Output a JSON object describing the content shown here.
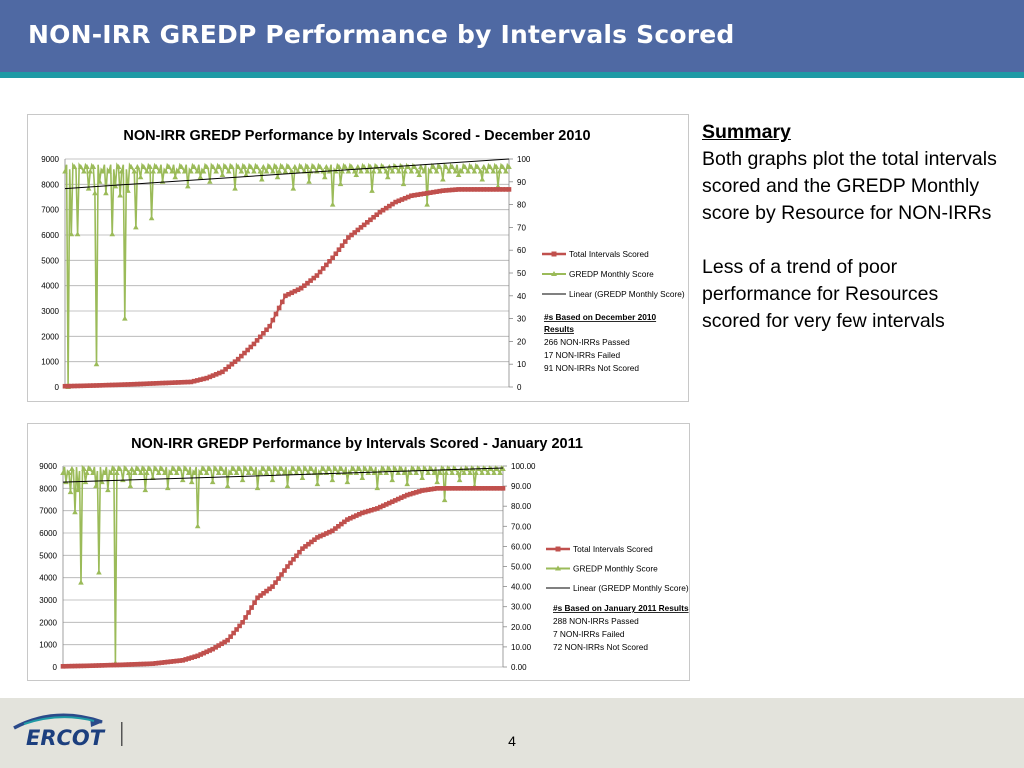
{
  "slide": {
    "title": "NON-IRR GREDP Performance by Intervals Scored",
    "page_number": "4",
    "logo_text": "ERCOT"
  },
  "summary": {
    "heading": "Summary",
    "paragraph1": "Both graphs plot the total intervals scored and the GREDP Monthly score by Resource for NON-IRRs",
    "paragraph2": "Less of a trend of poor performance for Resources scored for very few intervals"
  },
  "colors": {
    "title_bar": "#4f69a3",
    "stripe": "#1f9aa5",
    "intervals_series": "#c0504d",
    "score_series": "#9bbb59",
    "trend": "#000000"
  },
  "chart_data": [
    {
      "type": "line",
      "title": "NON-IRR GREDP Performance by Intervals Scored - December 2010",
      "y_left": {
        "range": [
          0,
          9000
        ],
        "ticks": [
          "0",
          "1000",
          "2000",
          "3000",
          "4000",
          "5000",
          "6000",
          "7000",
          "8000",
          "9000"
        ]
      },
      "y_right": {
        "range": [
          0,
          100
        ],
        "ticks": [
          "0",
          "10",
          "20",
          "30",
          "40",
          "50",
          "60",
          "70",
          "80",
          "90",
          "100"
        ]
      },
      "grid": true,
      "legend_position": "right",
      "legend": [
        "Total Intervals Scored",
        "GREDP Monthly Score",
        "Linear (GREDP Monthly Score)"
      ],
      "notes_heading": "#s Based on December 2010 Results",
      "notes": [
        "266 NON-IRRs Passed",
        "17 NON-IRRs Failed",
        "91 NON-IRRs Not Scored"
      ],
      "x_count": 283,
      "series": [
        {
          "name": "Total Intervals Scored",
          "axis": "left",
          "x": [
            0,
            20,
            40,
            60,
            80,
            90,
            100,
            110,
            120,
            130,
            140,
            150,
            160,
            170,
            180,
            190,
            200,
            210,
            220,
            230,
            240,
            250,
            260,
            270,
            282
          ],
          "y": [
            30,
            60,
            100,
            150,
            200,
            350,
            600,
            1100,
            1700,
            2400,
            3600,
            3900,
            4400,
            5100,
            5900,
            6400,
            6900,
            7300,
            7550,
            7650,
            7750,
            7800,
            7800,
            7800,
            7800
          ]
        },
        {
          "name": "GREDP Monthly Score",
          "axis": "right",
          "baseline": 96,
          "dips": [
            [
              2,
              0
            ],
            [
              4,
              67
            ],
            [
              8,
              67
            ],
            [
              15,
              87
            ],
            [
              19,
              85
            ],
            [
              20,
              10
            ],
            [
              22,
              90
            ],
            [
              26,
              85
            ],
            [
              30,
              67
            ],
            [
              32,
              88
            ],
            [
              35,
              84
            ],
            [
              38,
              30
            ],
            [
              40,
              86
            ],
            [
              45,
              70
            ],
            [
              48,
              92
            ],
            [
              55,
              74
            ],
            [
              62,
              90
            ],
            [
              70,
              92
            ],
            [
              78,
              88
            ],
            [
              86,
              92
            ],
            [
              92,
              90
            ],
            [
              100,
              93
            ],
            [
              108,
              87
            ],
            [
              115,
              93
            ],
            [
              125,
              91
            ],
            [
              135,
              92
            ],
            [
              145,
              87
            ],
            [
              155,
              90
            ],
            [
              165,
              92
            ],
            [
              170,
              80
            ],
            [
              175,
              89
            ],
            [
              185,
              93
            ],
            [
              195,
              86
            ],
            [
              205,
              92
            ],
            [
              215,
              89
            ],
            [
              225,
              93
            ],
            [
              230,
              80
            ],
            [
              240,
              91
            ],
            [
              250,
              93
            ],
            [
              265,
              91
            ],
            [
              275,
              88
            ]
          ]
        },
        {
          "name": "Linear (GREDP Monthly Score)",
          "axis": "right",
          "type": "trend",
          "x": [
            0,
            282
          ],
          "y": [
            87,
            100
          ]
        }
      ]
    },
    {
      "type": "line",
      "title": "NON-IRR GREDP Performance by Intervals Scored - January 2011",
      "y_left": {
        "range": [
          0,
          9000
        ],
        "ticks": [
          "0",
          "1000",
          "2000",
          "3000",
          "4000",
          "5000",
          "6000",
          "7000",
          "8000",
          "9000"
        ]
      },
      "y_right": {
        "range": [
          0,
          100
        ],
        "ticks": [
          "0.00",
          "10.00",
          "20.00",
          "30.00",
          "40.00",
          "50.00",
          "60.00",
          "70.00",
          "80.00",
          "90.00",
          "100.00"
        ]
      },
      "grid": true,
      "legend_position": "right",
      "legend": [
        "Total Intervals Scored",
        "GREDP Monthly Score",
        "Linear (GREDP Monthly Score)"
      ],
      "notes_heading": "#s Based on January 2011 Results",
      "notes": [
        "288 NON-IRRs Passed",
        "7 NON-IRRs Failed",
        "72 NON-IRRs Not Scored"
      ],
      "x_count": 295,
      "series": [
        {
          "name": "Total Intervals Scored",
          "axis": "left",
          "x": [
            0,
            20,
            40,
            60,
            80,
            90,
            100,
            110,
            120,
            130,
            140,
            150,
            160,
            170,
            180,
            190,
            200,
            210,
            220,
            230,
            240,
            250,
            260,
            270,
            280,
            294
          ],
          "y": [
            30,
            60,
            100,
            150,
            300,
            500,
            800,
            1200,
            2000,
            3100,
            3600,
            4500,
            5300,
            5800,
            6100,
            6600,
            6900,
            7100,
            7400,
            7700,
            7900,
            8000,
            8000,
            8000,
            8000,
            8000
          ]
        },
        {
          "name": "GREDP Monthly Score",
          "axis": "right",
          "baseline": 98,
          "dips": [
            [
              2,
              92
            ],
            [
              5,
              87
            ],
            [
              8,
              77
            ],
            [
              10,
              88
            ],
            [
              12,
              42
            ],
            [
              15,
              92
            ],
            [
              22,
              90
            ],
            [
              24,
              47
            ],
            [
              26,
              92
            ],
            [
              30,
              88
            ],
            [
              35,
              2
            ],
            [
              40,
              93
            ],
            [
              45,
              90
            ],
            [
              55,
              88
            ],
            [
              60,
              94
            ],
            [
              70,
              89
            ],
            [
              80,
              93
            ],
            [
              86,
              92
            ],
            [
              90,
              70
            ],
            [
              100,
              92
            ],
            [
              110,
              90
            ],
            [
              120,
              93
            ],
            [
              130,
              89
            ],
            [
              140,
              93
            ],
            [
              150,
              90
            ],
            [
              160,
              94
            ],
            [
              170,
              91
            ],
            [
              180,
              93
            ],
            [
              190,
              92
            ],
            [
              200,
              94
            ],
            [
              210,
              89
            ],
            [
              220,
              93
            ],
            [
              230,
              91
            ],
            [
              240,
              94
            ],
            [
              250,
              92
            ],
            [
              255,
              83
            ],
            [
              265,
              93
            ],
            [
              275,
              90
            ]
          ]
        },
        {
          "name": "Linear (GREDP Monthly Score)",
          "axis": "right",
          "type": "trend",
          "x": [
            0,
            294
          ],
          "y": [
            92,
            99
          ]
        }
      ]
    }
  ]
}
